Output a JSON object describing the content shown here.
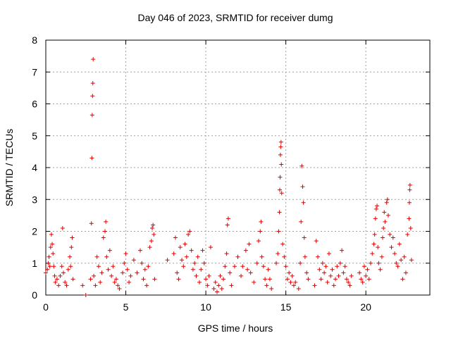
{
  "chart_data": {
    "type": "scatter",
    "title": "Day 046 of 2023, SRMTID for receiver dumg",
    "xlabel": "GPS time / hours",
    "ylabel": "SRMTID / TECUs",
    "xlim": [
      0,
      24
    ],
    "ylim": [
      0,
      8
    ],
    "x_ticks": [
      0,
      5,
      10,
      15,
      20
    ],
    "y_ticks": [
      0,
      1,
      2,
      3,
      4,
      5,
      6,
      7,
      8
    ],
    "grid": true,
    "marker": "plus",
    "color": "#e00000",
    "series": [
      {
        "name": "SRMTID",
        "points": [
          [
            0.0,
            0.7
          ],
          [
            0.1,
            0.8
          ],
          [
            0.15,
            1.0
          ],
          [
            0.2,
            1.2
          ],
          [
            0.25,
            0.9
          ],
          [
            0.3,
            1.5
          ],
          [
            0.35,
            1.9
          ],
          [
            0.4,
            1.6
          ],
          [
            0.45,
            1.3
          ],
          [
            0.5,
            0.9
          ],
          [
            0.55,
            0.6
          ],
          [
            0.6,
            0.4
          ],
          [
            0.7,
            0.5
          ],
          [
            0.8,
            0.3
          ],
          [
            0.9,
            0.6
          ],
          [
            1.0,
            0.9
          ],
          [
            1.05,
            2.1
          ],
          [
            1.1,
            0.7
          ],
          [
            1.2,
            0.4
          ],
          [
            1.3,
            0.3
          ],
          [
            1.4,
            0.8
          ],
          [
            1.5,
            1.2
          ],
          [
            1.55,
            0.9
          ],
          [
            1.6,
            1.5
          ],
          [
            1.65,
            1.8
          ],
          [
            1.7,
            0.5
          ],
          [
            2.3,
            0.3
          ],
          [
            2.5,
            0.0
          ],
          [
            2.8,
            0.5
          ],
          [
            2.85,
            2.25
          ],
          [
            2.88,
            4.3
          ],
          [
            2.9,
            5.65
          ],
          [
            2.92,
            6.25
          ],
          [
            2.94,
            6.65
          ],
          [
            2.96,
            7.4
          ],
          [
            3.0,
            0.6
          ],
          [
            3.1,
            0.3
          ],
          [
            3.2,
            1.2
          ],
          [
            3.3,
            0.9
          ],
          [
            3.4,
            0.4
          ],
          [
            3.5,
            0.7
          ],
          [
            3.6,
            1.8
          ],
          [
            3.7,
            2.0
          ],
          [
            3.75,
            2.3
          ],
          [
            3.8,
            1.2
          ],
          [
            3.9,
            0.8
          ],
          [
            4.0,
            1.4
          ],
          [
            4.1,
            0.6
          ],
          [
            4.2,
            0.9
          ],
          [
            4.3,
            0.4
          ],
          [
            4.4,
            0.5
          ],
          [
            4.5,
            0.3
          ],
          [
            4.6,
            0.2
          ],
          [
            4.8,
            0.7
          ],
          [
            4.9,
            1.0
          ],
          [
            5.0,
            1.3
          ],
          [
            5.1,
            0.8
          ],
          [
            5.2,
            0.4
          ],
          [
            5.3,
            0.6
          ],
          [
            5.5,
            1.1
          ],
          [
            5.7,
            0.7
          ],
          [
            5.9,
            1.4
          ],
          [
            6.0,
            1.0
          ],
          [
            6.1,
            0.5
          ],
          [
            6.2,
            0.8
          ],
          [
            6.3,
            0.3
          ],
          [
            6.4,
            0.9
          ],
          [
            6.5,
            1.5
          ],
          [
            6.6,
            1.7
          ],
          [
            6.65,
            2.1
          ],
          [
            6.7,
            2.2
          ],
          [
            6.75,
            1.9
          ],
          [
            6.8,
            0.5
          ],
          [
            7.6,
            1.1
          ],
          [
            8.0,
            1.3
          ],
          [
            8.1,
            1.8
          ],
          [
            8.2,
            0.7
          ],
          [
            8.3,
            0.5
          ],
          [
            8.4,
            1.5
          ],
          [
            8.5,
            1.1
          ],
          [
            8.6,
            0.9
          ],
          [
            8.7,
            1.6
          ],
          [
            8.8,
            1.2
          ],
          [
            8.9,
            1.9
          ],
          [
            9.0,
            2.0
          ],
          [
            9.1,
            1.4
          ],
          [
            9.2,
            0.8
          ],
          [
            9.3,
            1.0
          ],
          [
            9.4,
            0.6
          ],
          [
            9.5,
            1.2
          ],
          [
            9.6,
            0.4
          ],
          [
            9.7,
            0.8
          ],
          [
            9.8,
            1.4
          ],
          [
            9.9,
            1.0
          ],
          [
            10.0,
            0.5
          ],
          [
            10.1,
            0.3
          ],
          [
            10.2,
            0.6
          ],
          [
            10.3,
            1.5
          ],
          [
            10.5,
            0.2
          ],
          [
            10.6,
            0.4
          ],
          [
            10.7,
            0.1
          ],
          [
            10.8,
            0.3
          ],
          [
            10.9,
            0.6
          ],
          [
            11.0,
            0.2
          ],
          [
            11.1,
            0.5
          ],
          [
            11.2,
            0.9
          ],
          [
            11.3,
            1.3
          ],
          [
            11.35,
            2.2
          ],
          [
            11.4,
            2.4
          ],
          [
            11.5,
            0.7
          ],
          [
            11.6,
            0.3
          ],
          [
            11.8,
            0.9
          ],
          [
            12.0,
            1.2
          ],
          [
            12.2,
            0.6
          ],
          [
            12.3,
            0.9
          ],
          [
            12.5,
            1.4
          ],
          [
            12.6,
            0.8
          ],
          [
            12.7,
            1.6
          ],
          [
            12.8,
            0.7
          ],
          [
            13.0,
            0.4
          ],
          [
            13.2,
            1.0
          ],
          [
            13.3,
            1.7
          ],
          [
            13.4,
            2.0
          ],
          [
            13.45,
            2.3
          ],
          [
            13.5,
            1.2
          ],
          [
            13.6,
            0.9
          ],
          [
            13.7,
            0.5
          ],
          [
            13.8,
            0.3
          ],
          [
            13.9,
            0.8
          ],
          [
            14.0,
            0.5
          ],
          [
            14.1,
            0.2
          ],
          [
            14.4,
            1.0
          ],
          [
            14.5,
            1.3
          ],
          [
            14.55,
            2.0
          ],
          [
            14.6,
            2.6
          ],
          [
            14.62,
            3.3
          ],
          [
            14.64,
            3.7
          ],
          [
            14.66,
            4.4
          ],
          [
            14.68,
            4.65
          ],
          [
            14.7,
            4.8
          ],
          [
            14.72,
            4.1
          ],
          [
            14.74,
            3.2
          ],
          [
            14.8,
            1.6
          ],
          [
            14.9,
            1.2
          ],
          [
            15.0,
            0.9
          ],
          [
            15.1,
            0.5
          ],
          [
            15.2,
            0.7
          ],
          [
            15.3,
            0.4
          ],
          [
            15.4,
            0.6
          ],
          [
            15.5,
            0.3
          ],
          [
            15.6,
            0.4
          ],
          [
            15.8,
            0.2
          ],
          [
            15.9,
            1.0
          ],
          [
            15.95,
            2.3
          ],
          [
            16.0,
            4.05
          ],
          [
            16.05,
            3.4
          ],
          [
            16.1,
            2.9
          ],
          [
            16.15,
            1.8
          ],
          [
            16.2,
            1.2
          ],
          [
            16.3,
            0.7
          ],
          [
            16.4,
            0.5
          ],
          [
            16.8,
            0.3
          ],
          [
            16.9,
            1.7
          ],
          [
            17.0,
            1.2
          ],
          [
            17.1,
            0.8
          ],
          [
            17.2,
            0.5
          ],
          [
            17.3,
            1.0
          ],
          [
            17.4,
            0.7
          ],
          [
            17.5,
            0.9
          ],
          [
            17.6,
            0.4
          ],
          [
            17.7,
            1.3
          ],
          [
            17.8,
            0.6
          ],
          [
            17.9,
            0.8
          ],
          [
            18.0,
            0.3
          ],
          [
            18.1,
            0.5
          ],
          [
            18.2,
            0.9
          ],
          [
            18.3,
            0.6
          ],
          [
            18.4,
            1.0
          ],
          [
            18.5,
            1.4
          ],
          [
            18.6,
            0.7
          ],
          [
            18.7,
            0.9
          ],
          [
            18.8,
            0.5
          ],
          [
            18.9,
            0.4
          ],
          [
            19.0,
            0.3
          ],
          [
            19.1,
            0.6
          ],
          [
            19.6,
            0.7
          ],
          [
            19.7,
            0.5
          ],
          [
            19.8,
            0.4
          ],
          [
            19.9,
            0.9
          ],
          [
            20.0,
            0.6
          ],
          [
            20.1,
            0.8
          ],
          [
            20.2,
            0.5
          ],
          [
            20.3,
            1.0
          ],
          [
            20.4,
            1.3
          ],
          [
            20.5,
            1.6
          ],
          [
            20.55,
            1.9
          ],
          [
            20.6,
            2.4
          ],
          [
            20.65,
            2.7
          ],
          [
            20.7,
            2.8
          ],
          [
            20.75,
            1.5
          ],
          [
            20.8,
            1.0
          ],
          [
            20.9,
            0.8
          ],
          [
            21.0,
            1.2
          ],
          [
            21.05,
            1.8
          ],
          [
            21.1,
            2.1
          ],
          [
            21.15,
            2.6
          ],
          [
            21.2,
            2.3
          ],
          [
            21.3,
            2.9
          ],
          [
            21.35,
            3.0
          ],
          [
            21.4,
            2.5
          ],
          [
            21.5,
            1.9
          ],
          [
            21.6,
            1.5
          ],
          [
            21.7,
            1.8
          ],
          [
            21.8,
            1.3
          ],
          [
            21.9,
            1.0
          ],
          [
            22.0,
            0.9
          ],
          [
            22.1,
            1.6
          ],
          [
            22.2,
            1.1
          ],
          [
            22.3,
            0.5
          ],
          [
            22.4,
            1.2
          ],
          [
            22.5,
            0.7
          ],
          [
            22.6,
            1.9
          ],
          [
            22.7,
            2.4
          ],
          [
            22.72,
            2.9
          ],
          [
            22.74,
            3.3
          ],
          [
            22.76,
            3.45
          ],
          [
            22.8,
            2.1
          ],
          [
            22.85,
            1.1
          ]
        ]
      }
    ]
  }
}
